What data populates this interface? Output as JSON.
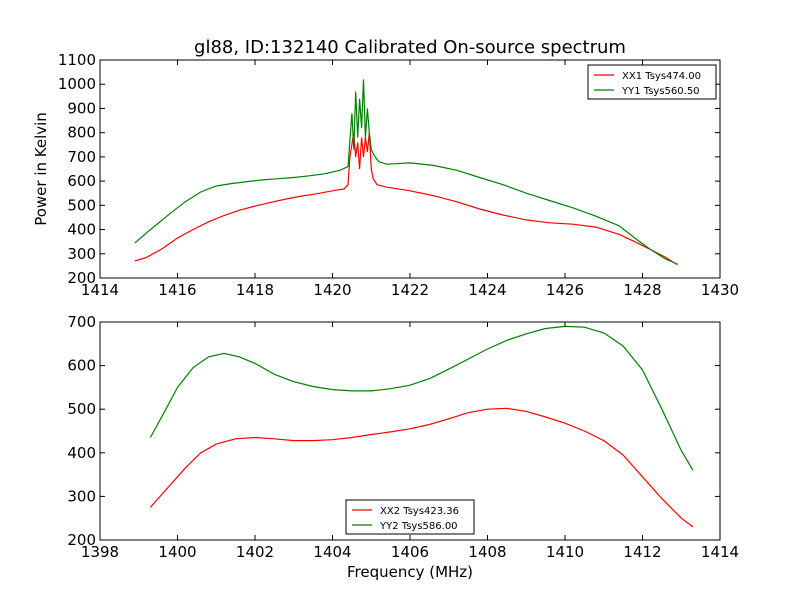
{
  "chart_data": [
    {
      "type": "line",
      "title": "gl88, ID:132140 Calibrated On-source spectrum",
      "xlabel": "",
      "ylabel": "Power in Kelvin",
      "xlim": [
        1414,
        1430
      ],
      "ylim": [
        200,
        1100
      ],
      "xticks": [
        1414,
        1416,
        1418,
        1420,
        1422,
        1424,
        1426,
        1428,
        1430
      ],
      "yticks": [
        200,
        300,
        400,
        500,
        600,
        700,
        800,
        900,
        1000,
        1100
      ],
      "grid": false,
      "legend_position": "top-right",
      "series": [
        {
          "name": "XX1 Tsys474.00",
          "color": "#ff0000",
          "points": [
            [
              1414.9,
              270
            ],
            [
              1415.2,
              285
            ],
            [
              1415.6,
              320
            ],
            [
              1416.0,
              365
            ],
            [
              1416.4,
              400
            ],
            [
              1416.8,
              432
            ],
            [
              1417.2,
              458
            ],
            [
              1417.6,
              480
            ],
            [
              1418.0,
              497
            ],
            [
              1418.4,
              512
            ],
            [
              1418.8,
              526
            ],
            [
              1419.2,
              538
            ],
            [
              1419.6,
              548
            ],
            [
              1420.0,
              560
            ],
            [
              1420.3,
              568
            ],
            [
              1420.4,
              585
            ],
            [
              1420.45,
              700
            ],
            [
              1420.55,
              800
            ],
            [
              1420.6,
              700
            ],
            [
              1420.65,
              760
            ],
            [
              1420.7,
              650
            ],
            [
              1420.75,
              780
            ],
            [
              1420.8,
              700
            ],
            [
              1420.85,
              780
            ],
            [
              1420.9,
              720
            ],
            [
              1420.95,
              800
            ],
            [
              1421.0,
              650
            ],
            [
              1421.05,
              610
            ],
            [
              1421.15,
              585
            ],
            [
              1421.4,
              575
            ],
            [
              1422.0,
              560
            ],
            [
              1422.6,
              540
            ],
            [
              1423.2,
              515
            ],
            [
              1423.8,
              485
            ],
            [
              1424.4,
              460
            ],
            [
              1425.0,
              440
            ],
            [
              1425.6,
              428
            ],
            [
              1426.2,
              422
            ],
            [
              1426.8,
              410
            ],
            [
              1427.4,
              380
            ],
            [
              1427.8,
              350
            ],
            [
              1428.2,
              318
            ],
            [
              1428.6,
              285
            ],
            [
              1428.9,
              255
            ]
          ]
        },
        {
          "name": "YY1 Tsys560.50",
          "color": "#008000",
          "points": [
            [
              1414.9,
              345
            ],
            [
              1415.3,
              400
            ],
            [
              1415.8,
              465
            ],
            [
              1416.2,
              515
            ],
            [
              1416.6,
              555
            ],
            [
              1417.0,
              580
            ],
            [
              1417.4,
              590
            ],
            [
              1417.8,
              598
            ],
            [
              1418.2,
              605
            ],
            [
              1418.6,
              610
            ],
            [
              1419.0,
              615
            ],
            [
              1419.4,
              622
            ],
            [
              1419.8,
              630
            ],
            [
              1420.2,
              645
            ],
            [
              1420.4,
              660
            ],
            [
              1420.5,
              880
            ],
            [
              1420.55,
              730
            ],
            [
              1420.6,
              970
            ],
            [
              1420.65,
              780
            ],
            [
              1420.7,
              940
            ],
            [
              1420.75,
              820
            ],
            [
              1420.8,
              1020
            ],
            [
              1420.85,
              780
            ],
            [
              1420.9,
              900
            ],
            [
              1420.95,
              800
            ],
            [
              1421.0,
              730
            ],
            [
              1421.1,
              700
            ],
            [
              1421.2,
              680
            ],
            [
              1421.4,
              670
            ],
            [
              1422.0,
              675
            ],
            [
              1422.6,
              665
            ],
            [
              1423.2,
              645
            ],
            [
              1423.8,
              615
            ],
            [
              1424.4,
              585
            ],
            [
              1425.0,
              550
            ],
            [
              1425.6,
              520
            ],
            [
              1426.2,
              490
            ],
            [
              1426.8,
              455
            ],
            [
              1427.4,
              415
            ],
            [
              1427.8,
              365
            ],
            [
              1428.2,
              318
            ],
            [
              1428.6,
              278
            ],
            [
              1428.9,
              258
            ]
          ]
        }
      ]
    },
    {
      "type": "line",
      "title": "",
      "xlabel": "Frequency (MHz)",
      "ylabel": "",
      "xlim": [
        1398,
        1414
      ],
      "ylim": [
        200,
        700
      ],
      "xticks": [
        1398,
        1400,
        1402,
        1404,
        1406,
        1408,
        1410,
        1412,
        1414
      ],
      "yticks": [
        200,
        300,
        400,
        500,
        600,
        700
      ],
      "grid": false,
      "legend_position": "bottom-center",
      "series": [
        {
          "name": "XX2 Tsys423.36",
          "color": "#ff0000",
          "points": [
            [
              1399.3,
              275
            ],
            [
              1399.7,
              315
            ],
            [
              1400.2,
              365
            ],
            [
              1400.6,
              400
            ],
            [
              1401.0,
              420
            ],
            [
              1401.5,
              432
            ],
            [
              1402.0,
              435
            ],
            [
              1402.5,
              432
            ],
            [
              1403.0,
              428
            ],
            [
              1403.5,
              428
            ],
            [
              1404.0,
              430
            ],
            [
              1404.5,
              435
            ],
            [
              1405.0,
              442
            ],
            [
              1405.5,
              448
            ],
            [
              1406.0,
              455
            ],
            [
              1406.5,
              465
            ],
            [
              1407.0,
              478
            ],
            [
              1407.5,
              492
            ],
            [
              1408.0,
              500
            ],
            [
              1408.5,
              502
            ],
            [
              1409.0,
              495
            ],
            [
              1409.5,
              482
            ],
            [
              1410.0,
              468
            ],
            [
              1410.5,
              450
            ],
            [
              1411.0,
              428
            ],
            [
              1411.5,
              395
            ],
            [
              1412.0,
              345
            ],
            [
              1412.5,
              295
            ],
            [
              1413.0,
              250
            ],
            [
              1413.3,
              230
            ]
          ]
        },
        {
          "name": "YY2 Tsys586.00",
          "color": "#008000",
          "points": [
            [
              1399.3,
              435
            ],
            [
              1399.7,
              500
            ],
            [
              1400.0,
              550
            ],
            [
              1400.4,
              595
            ],
            [
              1400.8,
              620
            ],
            [
              1401.2,
              628
            ],
            [
              1401.6,
              620
            ],
            [
              1402.0,
              605
            ],
            [
              1402.5,
              580
            ],
            [
              1403.0,
              563
            ],
            [
              1403.5,
              552
            ],
            [
              1404.0,
              545
            ],
            [
              1404.5,
              542
            ],
            [
              1405.0,
              542
            ],
            [
              1405.5,
              547
            ],
            [
              1406.0,
              555
            ],
            [
              1406.5,
              570
            ],
            [
              1407.0,
              592
            ],
            [
              1407.5,
              615
            ],
            [
              1408.0,
              638
            ],
            [
              1408.5,
              658
            ],
            [
              1409.0,
              673
            ],
            [
              1409.5,
              685
            ],
            [
              1410.0,
              690
            ],
            [
              1410.5,
              688
            ],
            [
              1411.0,
              675
            ],
            [
              1411.5,
              645
            ],
            [
              1412.0,
              590
            ],
            [
              1412.5,
              500
            ],
            [
              1413.0,
              405
            ],
            [
              1413.3,
              360
            ]
          ]
        }
      ]
    }
  ]
}
